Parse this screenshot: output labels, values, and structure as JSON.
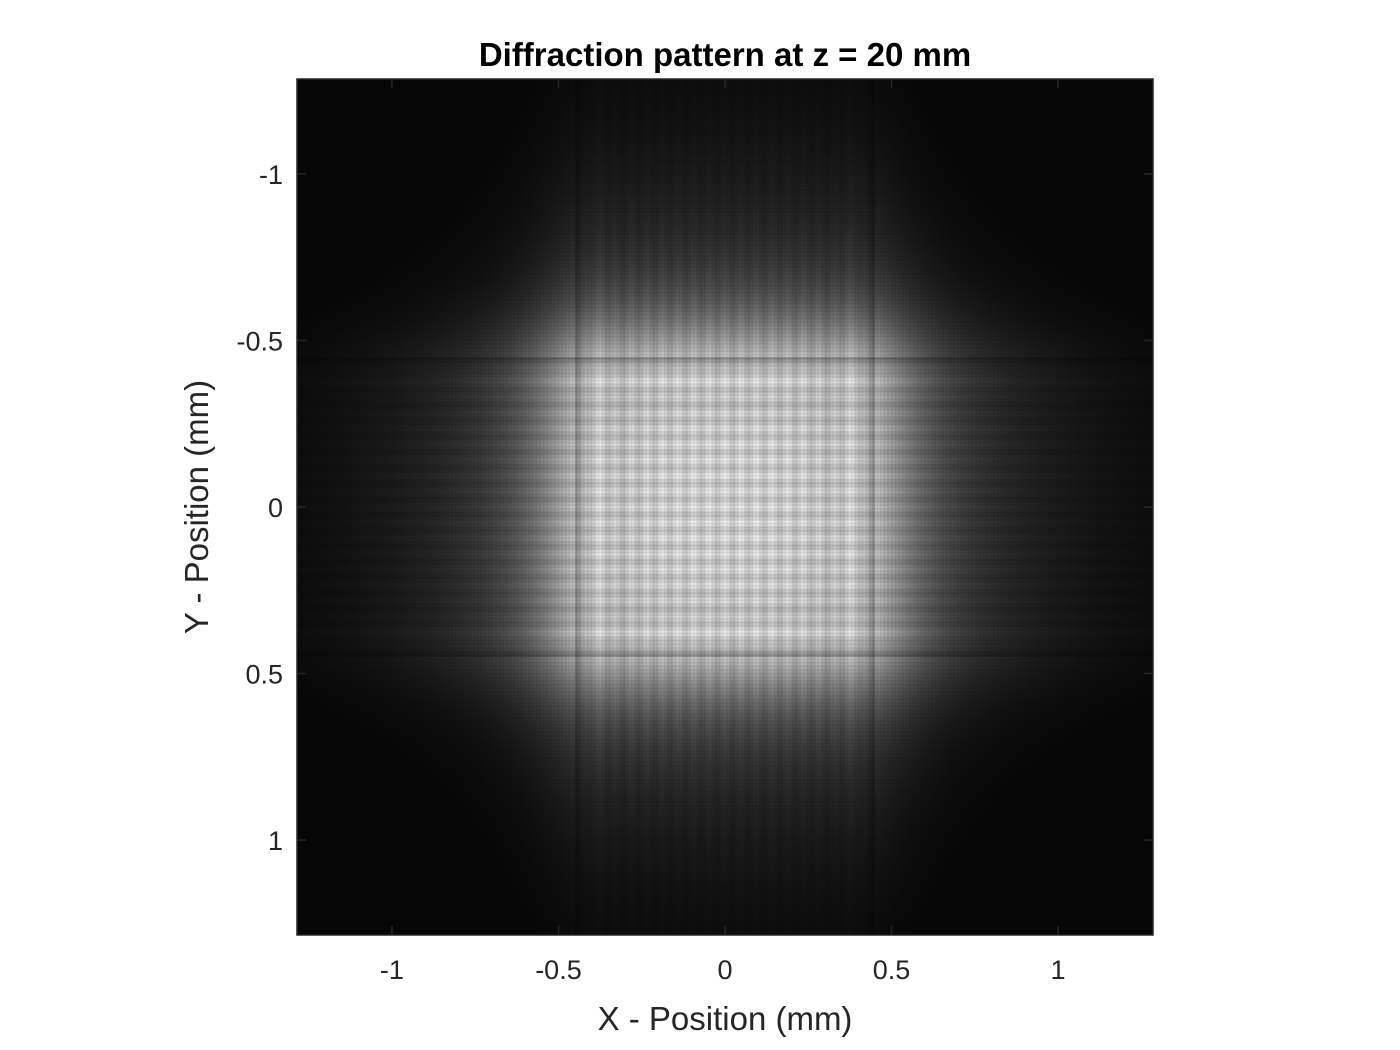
{
  "chart_data": {
    "type": "heatmap",
    "title": "Diffraction pattern at z = 20 mm",
    "xlabel": "X - Position (mm)",
    "ylabel": "Y - Position (mm)",
    "xlim": [
      -1.285,
      1.285
    ],
    "ylim": [
      -1.285,
      1.285
    ],
    "y_reversed": true,
    "grid": false,
    "colormap": "gray",
    "x_ticks": [
      -1,
      -0.5,
      0,
      0.5,
      1
    ],
    "x_tick_labels": [
      "-1",
      "-0.5",
      "0",
      "0.5",
      "1"
    ],
    "y_ticks": [
      -1,
      -0.5,
      0,
      0.5,
      1
    ],
    "y_tick_labels": [
      "-1",
      "-0.5",
      "0",
      "0.5",
      "1"
    ],
    "aperture": {
      "shape": "square",
      "x_range": [
        -0.45,
        0.45
      ],
      "y_range": [
        -0.45,
        0.45
      ]
    },
    "intensity_range": [
      0,
      1
    ],
    "colors": {
      "axis": "#262626",
      "background": "#ffffff",
      "title": "#000000"
    }
  }
}
